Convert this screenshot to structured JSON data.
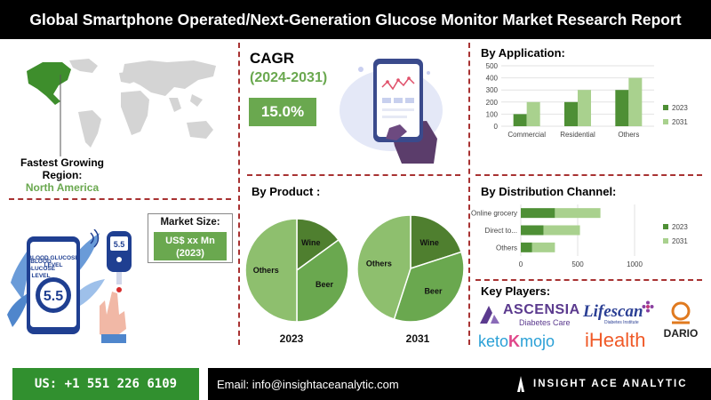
{
  "header": {
    "title": "Global Smartphone Operated/Next-Generation Glucose Monitor Market Research Report"
  },
  "region": {
    "label": "Fastest Growing Region:",
    "value": "North America"
  },
  "cagr": {
    "title": "CAGR",
    "years": "(2024-2031)",
    "value": "15.0%"
  },
  "market_size": {
    "title": "Market Size:",
    "value": "US$ xx Mn",
    "year": "(2023)"
  },
  "device": {
    "screen_label": "BLOOD GLUCOSE LEVEL",
    "screen_value": "5.5",
    "meter_value": "5.5"
  },
  "sections": {
    "application": "By Application:",
    "product": "By Product :",
    "distribution": "By Distribution Channel:",
    "key_players": "Key Players:"
  },
  "key_players": {
    "ascensia": "ASCENSIA",
    "ascensia_sub": "Diabetes Care",
    "lifescan": "Lifescan",
    "lifescan_sub": "Diabetes Institute",
    "dario": "DARIO",
    "ketomojo_a": "keto",
    "ketomojo_b": "mojo",
    "ihealth_i": "i",
    "ihealth_rest": "Health"
  },
  "footer": {
    "phone": "US: +1 551 226 6109",
    "email": "Email: info@insightaceanalytic.com",
    "brand": "INSIGHT ACE ANALYTIC"
  },
  "colors": {
    "series_2023": "#4e8f35",
    "series_2031": "#a9d18e",
    "pie_dark": "#4f7f2f",
    "pie_mid": "#6aa84f",
    "pie_light": "#8ebf6e",
    "accent_green": "#6aa84f",
    "divider": "#a83232"
  },
  "chart_data": [
    {
      "type": "bar",
      "orientation": "vertical",
      "title": "By Application:",
      "categories": [
        "Commercial",
        "Residential",
        "Others"
      ],
      "series": [
        {
          "name": "2023",
          "values": [
            100,
            200,
            300
          ]
        },
        {
          "name": "2031",
          "values": [
            200,
            300,
            400
          ]
        }
      ],
      "yticks": [
        0,
        100,
        200,
        300,
        400,
        500
      ],
      "ylim": [
        0,
        500
      ],
      "grid": true,
      "legend": "right"
    },
    {
      "type": "bar",
      "orientation": "horizontal",
      "stacked": true,
      "title": "By Distribution Channel:",
      "categories": [
        "Online grocery",
        "Direct to...",
        "Others"
      ],
      "series": [
        {
          "name": "2023",
          "values": [
            300,
            200,
            100
          ]
        },
        {
          "name": "2031",
          "values": [
            400,
            320,
            200
          ]
        }
      ],
      "xticks": [
        0,
        500,
        1000
      ],
      "xlim": [
        0,
        1000
      ],
      "legend": "right"
    },
    {
      "type": "pie",
      "year": "2023",
      "slices": [
        {
          "label": "Wine",
          "value": 15
        },
        {
          "label": "Beer",
          "value": 35
        },
        {
          "label": "Others",
          "value": 50
        }
      ]
    },
    {
      "type": "pie",
      "year": "2031",
      "slices": [
        {
          "label": "Wine",
          "value": 20
        },
        {
          "label": "Beer",
          "value": 35
        },
        {
          "label": "Others",
          "value": 45
        }
      ]
    }
  ]
}
